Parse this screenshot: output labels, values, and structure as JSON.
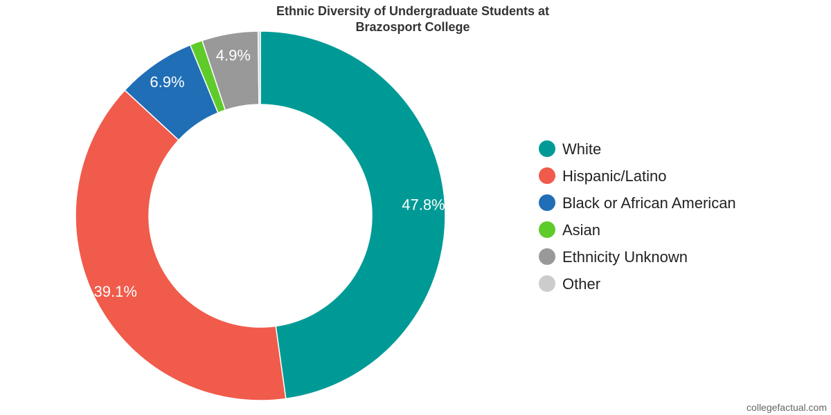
{
  "chart_data": {
    "type": "pie",
    "donut": true,
    "title": "Ethnic Diversity of Undergraduate Students at Brazosport College",
    "title_lines": [
      "Ethnic Diversity of Undergraduate Students at",
      "Brazosport College"
    ],
    "slices": [
      {
        "name": "White",
        "value": 47.8,
        "label": "47.8%",
        "color": "#009a96"
      },
      {
        "name": "Hispanic/Latino",
        "value": 39.1,
        "label": "39.1%",
        "color": "#f05b4b"
      },
      {
        "name": "Black or African American",
        "value": 6.9,
        "label": "6.9%",
        "color": "#1f6eb6"
      },
      {
        "name": "Asian",
        "value": 1.1,
        "label": "",
        "color": "#5ecb2a"
      },
      {
        "name": "Ethnicity Unknown",
        "value": 4.9,
        "label": "4.9%",
        "color": "#999999"
      },
      {
        "name": "Other",
        "value": 0.2,
        "label": "",
        "color": "#cccccc"
      }
    ],
    "legend_position": "right"
  },
  "source": "collegefactual.com"
}
